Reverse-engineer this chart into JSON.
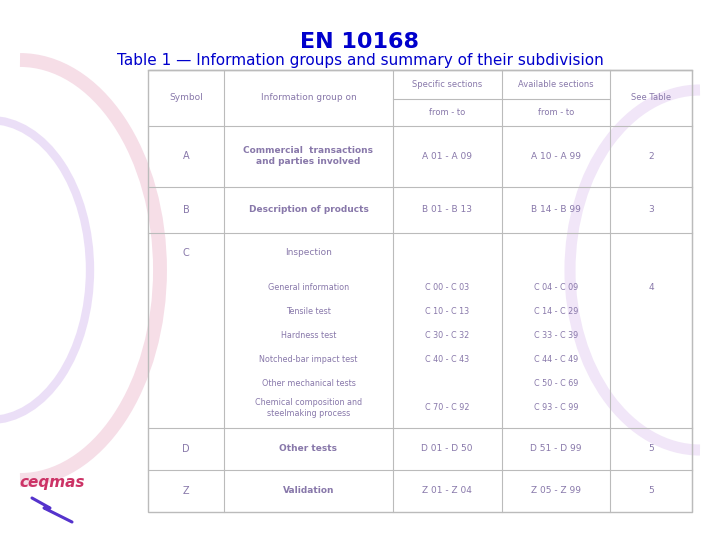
{
  "title1": "EN 10168",
  "title2": "Table 1 — Information groups and summary of their subdivision",
  "title_color": "#0000cc",
  "bg_color": "#ffffff",
  "text_color": "#8878aa",
  "border_color": "#bbbbbb",
  "subrows": [
    {
      "group": "General information",
      "specific": "C 00 - C 03",
      "available": "C 04 - C 09",
      "see_table": "4"
    },
    {
      "group": "Tensile test",
      "specific": "C 10 - C 13",
      "available": "C 14 - C 29",
      "see_table": ""
    },
    {
      "group": "Hardness test",
      "specific": "C 30 - C 32",
      "available": "C 33 - C 39",
      "see_table": ""
    },
    {
      "group": "Notched-bar impact test",
      "specific": "C 40 - C 43",
      "available": "C 44 - C 49",
      "see_table": ""
    },
    {
      "group": "Other mechanical tests",
      "specific": "",
      "available": "C 50 - C 69",
      "see_table": ""
    },
    {
      "group": "Chemical composition and\nsteelmaking process",
      "specific": "C 70 - C 92",
      "available": "C 93 - C 99",
      "see_table": ""
    }
  ]
}
